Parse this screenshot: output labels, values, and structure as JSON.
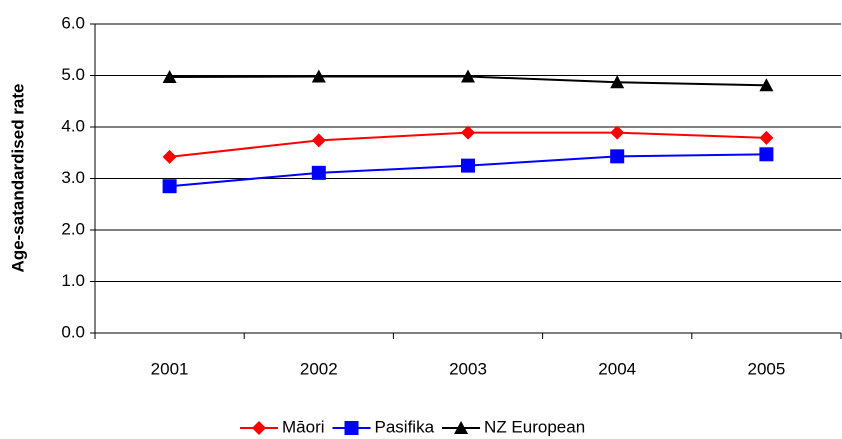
{
  "chart_data": {
    "type": "line",
    "y_label": "Age-satandardised rate",
    "categories": [
      "2001",
      "2002",
      "2003",
      "2004",
      "2005"
    ],
    "series": [
      {
        "name": "Māori",
        "color": "#ff0000",
        "marker": "diamond",
        "values": [
          3.42,
          3.74,
          3.89,
          3.89,
          3.79
        ]
      },
      {
        "name": "Pasifika",
        "color": "#0000ff",
        "marker": "square",
        "values": [
          2.85,
          3.11,
          3.25,
          3.43,
          3.47
        ]
      },
      {
        "name": "NZ European",
        "color": "#000000",
        "marker": "triangle",
        "values": [
          4.97,
          4.98,
          4.98,
          4.87,
          4.81
        ]
      }
    ],
    "ylim": [
      0,
      6
    ],
    "yticks": [
      {
        "value": 0,
        "label": "0.0"
      },
      {
        "value": 1,
        "label": "1.0"
      },
      {
        "value": 2,
        "label": "2.0"
      },
      {
        "value": 3,
        "label": "3.0"
      },
      {
        "value": 4,
        "label": "4.0"
      },
      {
        "value": 5,
        "label": "5.0"
      },
      {
        "value": 6,
        "label": "6.0"
      }
    ],
    "grid": true
  }
}
